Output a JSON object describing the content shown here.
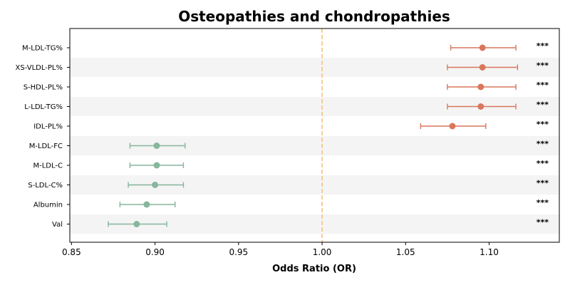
{
  "chart_data": {
    "type": "forest",
    "title": "Osteopathies and chondropathies",
    "xlabel": "Odds Ratio (OR)",
    "xlim": [
      0.849,
      1.142
    ],
    "xticks": [
      0.85,
      0.9,
      0.95,
      1.0,
      1.05,
      1.1
    ],
    "xtick_labels": [
      "0.85",
      "0.90",
      "0.95",
      "1.00",
      "1.05",
      "1.10"
    ],
    "reference_line": 1.0,
    "colors": {
      "positive": "#d9775b",
      "negative": "#86b69c",
      "reference": "#f5c27a",
      "band": "#f4f4f4"
    },
    "rows": [
      {
        "label": "M-LDL-TG%",
        "or": 1.096,
        "low": 1.077,
        "high": 1.116,
        "sig": "***"
      },
      {
        "label": "XS-VLDL-PL%",
        "or": 1.096,
        "low": 1.075,
        "high": 1.117,
        "sig": "***"
      },
      {
        "label": "S-HDL-PL%",
        "or": 1.095,
        "low": 1.075,
        "high": 1.116,
        "sig": "***"
      },
      {
        "label": "L-LDL-TG%",
        "or": 1.095,
        "low": 1.075,
        "high": 1.116,
        "sig": "***"
      },
      {
        "label": "IDL-PL%",
        "or": 1.078,
        "low": 1.059,
        "high": 1.098,
        "sig": "***"
      },
      {
        "label": "M-LDL-FC",
        "or": 0.901,
        "low": 0.885,
        "high": 0.918,
        "sig": "***"
      },
      {
        "label": "M-LDL-C",
        "or": 0.901,
        "low": 0.885,
        "high": 0.917,
        "sig": "***"
      },
      {
        "label": "S-LDL-C%",
        "or": 0.9,
        "low": 0.884,
        "high": 0.917,
        "sig": "***"
      },
      {
        "label": "Albumin",
        "or": 0.895,
        "low": 0.879,
        "high": 0.912,
        "sig": "***"
      },
      {
        "label": "Val",
        "or": 0.889,
        "low": 0.872,
        "high": 0.907,
        "sig": "***"
      }
    ]
  }
}
